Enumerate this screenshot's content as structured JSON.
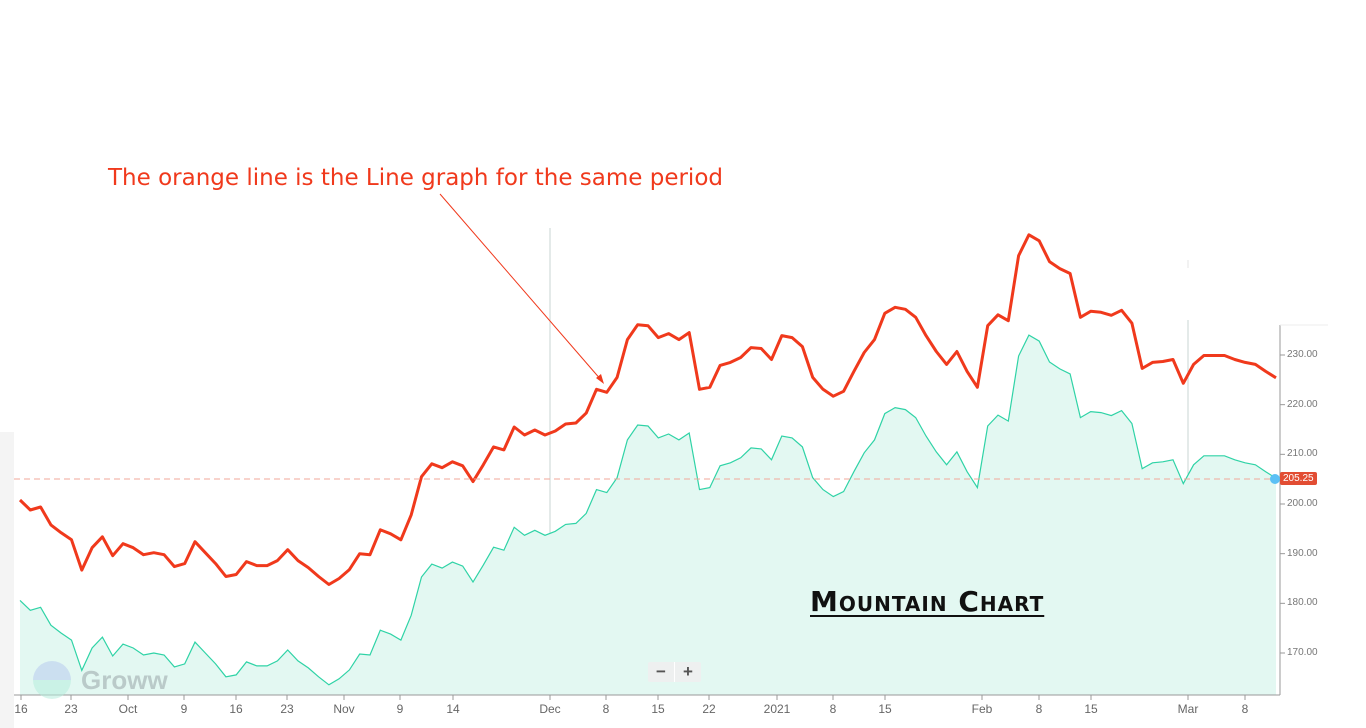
{
  "annotation": {
    "text": "The orange line is the Line graph for the same period",
    "color": "#f0391c"
  },
  "mountain_label": "Mountain Chart",
  "watermark": "Groww",
  "zoom_controls": {
    "minus": "−",
    "plus": "+"
  },
  "current_price": "205.25",
  "colors": {
    "line": "#f0391c",
    "mountain_stroke": "#2fd3a6",
    "mountain_fill": "#e3f8f2",
    "price_badge": "#e24d33",
    "price_dot": "#5bc0f5"
  },
  "chart_data": {
    "type": "line",
    "title": "",
    "xlabel": "",
    "ylabel": "",
    "ylim": [
      162,
      235
    ],
    "grid": false,
    "y_ticks": [
      "230.00",
      "220.00",
      "210.00",
      "200.00",
      "190.00",
      "180.00",
      "170.00"
    ],
    "x_ticks": [
      "16",
      "23",
      "Oct",
      "9",
      "16",
      "23",
      "Nov",
      "9",
      "14",
      "Dec",
      "8",
      "15",
      "22",
      "2021",
      "8",
      "15",
      "Feb",
      "8",
      "15",
      "Mar",
      "8"
    ],
    "reference_line": 205.25,
    "series": [
      {
        "name": "Mountain (area)",
        "type": "area",
        "values": [
          180.6,
          178.6,
          179.2,
          175.6,
          174.0,
          172.6,
          166.5,
          171.0,
          173.2,
          169.4,
          171.8,
          171.0,
          169.6,
          170.0,
          169.6,
          167.2,
          167.8,
          172.2,
          170.0,
          167.8,
          165.2,
          165.6,
          168.2,
          167.4,
          167.4,
          168.4,
          170.6,
          168.4,
          167.0,
          165.2,
          163.6,
          164.8,
          166.6,
          169.8,
          169.6,
          174.6,
          173.8,
          172.6,
          177.6,
          185.3,
          187.9,
          187.1,
          188.3,
          187.5,
          184.3,
          187.7,
          191.3,
          190.7,
          195.3,
          193.7,
          194.7,
          193.7,
          194.5,
          195.9,
          196.1,
          198.1,
          202.9,
          202.3,
          205.3,
          212.9,
          215.9,
          215.7,
          213.3,
          214.1,
          212.9,
          214.3,
          202.9,
          203.3,
          207.7,
          208.3,
          209.3,
          211.3,
          211.1,
          208.9,
          213.7,
          213.3,
          211.5,
          205.3,
          202.9,
          201.5,
          202.5,
          206.5,
          210.3,
          212.9,
          218.2,
          219.4,
          219.0,
          217.4,
          213.7,
          210.5,
          207.9,
          210.5,
          206.5,
          203.3,
          215.7,
          217.9,
          216.7,
          229.8,
          234.0,
          232.8,
          228.6,
          227.2,
          226.2,
          217.4,
          218.6,
          218.4,
          217.8,
          218.8,
          216.2,
          207.1,
          208.3,
          208.5,
          208.9,
          204.1,
          207.9,
          209.7,
          209.7,
          209.7,
          208.9,
          208.3,
          207.9,
          206.5,
          205.2
        ]
      },
      {
        "name": "Line graph (orange)",
        "type": "line",
        "values": [
          200.8,
          198.8,
          199.4,
          195.8,
          194.2,
          192.8,
          186.7,
          191.2,
          193.4,
          189.6,
          192.0,
          191.2,
          189.8,
          190.2,
          189.8,
          187.4,
          188.0,
          192.4,
          190.2,
          188.0,
          185.4,
          185.8,
          188.4,
          187.6,
          187.6,
          188.6,
          190.8,
          188.6,
          187.2,
          185.4,
          183.8,
          185.0,
          186.8,
          190.0,
          189.8,
          194.8,
          194.0,
          192.8,
          197.8,
          205.5,
          208.1,
          207.3,
          208.5,
          207.7,
          204.5,
          207.9,
          211.5,
          210.9,
          215.5,
          213.9,
          214.9,
          213.9,
          214.7,
          216.1,
          216.3,
          218.3,
          223.1,
          222.5,
          225.5,
          233.1,
          236.1,
          235.9,
          233.5,
          234.3,
          233.1,
          234.5,
          223.1,
          223.5,
          227.9,
          228.5,
          229.5,
          231.5,
          231.3,
          229.1,
          233.9,
          233.5,
          231.7,
          225.5,
          223.1,
          221.7,
          222.7,
          226.7,
          230.5,
          233.1,
          238.4,
          239.6,
          239.2,
          237.6,
          233.9,
          230.7,
          228.1,
          230.7,
          226.7,
          223.5,
          235.9,
          238.1,
          236.9,
          250.0,
          254.2,
          253.0,
          248.8,
          247.4,
          246.4,
          237.6,
          238.8,
          238.6,
          238.0,
          239.0,
          236.4,
          227.3,
          228.5,
          228.7,
          229.1,
          224.3,
          228.1,
          229.9,
          229.9,
          229.9,
          229.1,
          228.5,
          228.1,
          226.7,
          225.4
        ]
      }
    ]
  }
}
